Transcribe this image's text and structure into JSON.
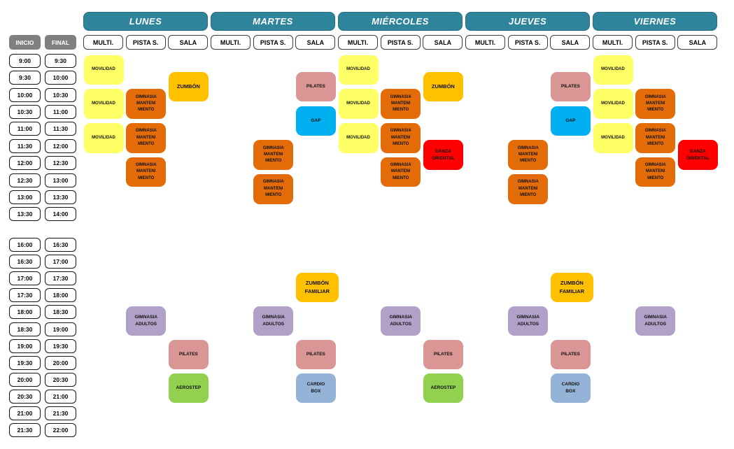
{
  "colors": {
    "day_header": "#2E849B",
    "time_header": "#808080",
    "canvas_background": "#FFFFFF"
  },
  "days": [
    "LUNES",
    "MARTES",
    "MIÉRCOLES",
    "JUEVES",
    "VIERNES"
  ],
  "subcolumns": [
    "MULTI.",
    "PISTA S.",
    "SALA"
  ],
  "time_labels": {
    "inicio": "INICIO",
    "final": "FINAL"
  },
  "morning_rows": [
    {
      "inicio": "9:00",
      "final": "9:30"
    },
    {
      "inicio": "9:30",
      "final": "10:00"
    },
    {
      "inicio": "10:00",
      "final": "10:30"
    },
    {
      "inicio": "10:30",
      "final": "11:00"
    },
    {
      "inicio": "11:00",
      "final": "11:30"
    },
    {
      "inicio": "11:30",
      "final": "12:00"
    },
    {
      "inicio": "12:00",
      "final": "12:30"
    },
    {
      "inicio": "12:30",
      "final": "13:00"
    },
    {
      "inicio": "13:00",
      "final": "13:30"
    },
    {
      "inicio": "13:30",
      "final": "14:00"
    }
  ],
  "afternoon_rows": [
    {
      "inicio": "16:00",
      "final": "16:30"
    },
    {
      "inicio": "16:30",
      "final": "17:00"
    },
    {
      "inicio": "17:00",
      "final": "17:30"
    },
    {
      "inicio": "17:30",
      "final": "18:00"
    },
    {
      "inicio": "18:00",
      "final": "18:30"
    },
    {
      "inicio": "18:30",
      "final": "19:00"
    },
    {
      "inicio": "19:00",
      "final": "19:30"
    },
    {
      "inicio": "19:30",
      "final": "20:00"
    },
    {
      "inicio": "20:00",
      "final": "20:30"
    },
    {
      "inicio": "20:30",
      "final": "21:00"
    },
    {
      "inicio": "21:00",
      "final": "21:30"
    },
    {
      "inicio": "21:30",
      "final": "22:00"
    }
  ],
  "activity_types": {
    "movilidad": {
      "lines": [
        "MOVILIDAD"
      ],
      "color": "#FFFF66"
    },
    "gimnasia_mantenimiento": {
      "lines": [
        "GIMNASIA",
        "MANTENI",
        "MIENTO"
      ],
      "color": "#E36C09"
    },
    "zumbon": {
      "lines": [
        "ZUMBÓN"
      ],
      "color": "#FFC000"
    },
    "pilates": {
      "lines": [
        "PILATES"
      ],
      "color": "#D99694"
    },
    "gap": {
      "lines": [
        "GAP"
      ],
      "color": "#00B0F0"
    },
    "danza_oriental": {
      "lines": [
        "DANZA",
        "ORIENTAL"
      ],
      "color": "#FF0000"
    },
    "zumbon_familiar": {
      "lines": [
        "ZUMBÓN",
        "FAMILIAR"
      ],
      "color": "#FFC000"
    },
    "gimnasia_adultos": {
      "lines": [
        "GIMNASIA",
        "ADULTOS"
      ],
      "color": "#B1A0C7"
    },
    "aerostep": {
      "lines": [
        "AEROSTEP"
      ],
      "color": "#92D050"
    },
    "cardio_box": {
      "lines": [
        "CARDIO",
        "BOX"
      ],
      "color": "#95B3D7"
    }
  },
  "schedule": [
    {
      "type": "movilidad",
      "day": 0,
      "col": 0,
      "section": "morning",
      "row": 0,
      "rows": 2
    },
    {
      "type": "movilidad",
      "day": 0,
      "col": 0,
      "section": "morning",
      "row": 2,
      "rows": 2
    },
    {
      "type": "movilidad",
      "day": 0,
      "col": 0,
      "section": "morning",
      "row": 4,
      "rows": 2
    },
    {
      "type": "gimnasia_mantenimiento",
      "day": 0,
      "col": 1,
      "section": "morning",
      "row": 2,
      "rows": 2
    },
    {
      "type": "gimnasia_mantenimiento",
      "day": 0,
      "col": 1,
      "section": "morning",
      "row": 4,
      "rows": 2
    },
    {
      "type": "gimnasia_mantenimiento",
      "day": 0,
      "col": 1,
      "section": "morning",
      "row": 6,
      "rows": 2
    },
    {
      "type": "zumbon",
      "day": 0,
      "col": 2,
      "section": "morning",
      "row": 1,
      "rows": 2
    },
    {
      "type": "pilates",
      "day": 1,
      "col": 2,
      "section": "morning",
      "row": 1,
      "rows": 2
    },
    {
      "type": "gap",
      "day": 1,
      "col": 2,
      "section": "morning",
      "row": 3,
      "rows": 2
    },
    {
      "type": "gimnasia_mantenimiento",
      "day": 1,
      "col": 1,
      "section": "morning",
      "row": 5,
      "rows": 2
    },
    {
      "type": "gimnasia_mantenimiento",
      "day": 1,
      "col": 1,
      "section": "morning",
      "row": 7,
      "rows": 2
    },
    {
      "type": "movilidad",
      "day": 2,
      "col": 0,
      "section": "morning",
      "row": 0,
      "rows": 2
    },
    {
      "type": "movilidad",
      "day": 2,
      "col": 0,
      "section": "morning",
      "row": 2,
      "rows": 2
    },
    {
      "type": "movilidad",
      "day": 2,
      "col": 0,
      "section": "morning",
      "row": 4,
      "rows": 2
    },
    {
      "type": "gimnasia_mantenimiento",
      "day": 2,
      "col": 1,
      "section": "morning",
      "row": 2,
      "rows": 2
    },
    {
      "type": "gimnasia_mantenimiento",
      "day": 2,
      "col": 1,
      "section": "morning",
      "row": 4,
      "rows": 2
    },
    {
      "type": "gimnasia_mantenimiento",
      "day": 2,
      "col": 1,
      "section": "morning",
      "row": 6,
      "rows": 2
    },
    {
      "type": "zumbon",
      "day": 2,
      "col": 2,
      "section": "morning",
      "row": 1,
      "rows": 2
    },
    {
      "type": "danza_oriental",
      "day": 2,
      "col": 2,
      "section": "morning",
      "row": 5,
      "rows": 2
    },
    {
      "type": "pilates",
      "day": 3,
      "col": 2,
      "section": "morning",
      "row": 1,
      "rows": 2
    },
    {
      "type": "gap",
      "day": 3,
      "col": 2,
      "section": "morning",
      "row": 3,
      "rows": 2
    },
    {
      "type": "gimnasia_mantenimiento",
      "day": 3,
      "col": 1,
      "section": "morning",
      "row": 5,
      "rows": 2
    },
    {
      "type": "gimnasia_mantenimiento",
      "day": 3,
      "col": 1,
      "section": "morning",
      "row": 7,
      "rows": 2
    },
    {
      "type": "movilidad",
      "day": 4,
      "col": 0,
      "section": "morning",
      "row": 0,
      "rows": 2
    },
    {
      "type": "movilidad",
      "day": 4,
      "col": 0,
      "section": "morning",
      "row": 2,
      "rows": 2
    },
    {
      "type": "movilidad",
      "day": 4,
      "col": 0,
      "section": "morning",
      "row": 4,
      "rows": 2
    },
    {
      "type": "gimnasia_mantenimiento",
      "day": 4,
      "col": 1,
      "section": "morning",
      "row": 2,
      "rows": 2
    },
    {
      "type": "gimnasia_mantenimiento",
      "day": 4,
      "col": 1,
      "section": "morning",
      "row": 4,
      "rows": 2
    },
    {
      "type": "gimnasia_mantenimiento",
      "day": 4,
      "col": 1,
      "section": "morning",
      "row": 6,
      "rows": 2
    },
    {
      "type": "danza_oriental",
      "day": 4,
      "col": 2,
      "section": "morning",
      "row": 5,
      "rows": 2
    },
    {
      "type": "gimnasia_adultos",
      "day": 0,
      "col": 1,
      "section": "afternoon",
      "row": 4,
      "rows": 2
    },
    {
      "type": "pilates",
      "day": 0,
      "col": 2,
      "section": "afternoon",
      "row": 6,
      "rows": 2
    },
    {
      "type": "aerostep",
      "day": 0,
      "col": 2,
      "section": "afternoon",
      "row": 8,
      "rows": 2
    },
    {
      "type": "zumbon_familiar",
      "day": 1,
      "col": 2,
      "section": "afternoon",
      "row": 2,
      "rows": 2
    },
    {
      "type": "gimnasia_adultos",
      "day": 1,
      "col": 1,
      "section": "afternoon",
      "row": 4,
      "rows": 2
    },
    {
      "type": "pilates",
      "day": 1,
      "col": 2,
      "section": "afternoon",
      "row": 6,
      "rows": 2
    },
    {
      "type": "cardio_box",
      "day": 1,
      "col": 2,
      "section": "afternoon",
      "row": 8,
      "rows": 2
    },
    {
      "type": "gimnasia_adultos",
      "day": 2,
      "col": 1,
      "section": "afternoon",
      "row": 4,
      "rows": 2
    },
    {
      "type": "pilates",
      "day": 2,
      "col": 2,
      "section": "afternoon",
      "row": 6,
      "rows": 2
    },
    {
      "type": "aerostep",
      "day": 2,
      "col": 2,
      "section": "afternoon",
      "row": 8,
      "rows": 2
    },
    {
      "type": "zumbon_familiar",
      "day": 3,
      "col": 2,
      "section": "afternoon",
      "row": 2,
      "rows": 2
    },
    {
      "type": "gimnasia_adultos",
      "day": 3,
      "col": 1,
      "section": "afternoon",
      "row": 4,
      "rows": 2
    },
    {
      "type": "pilates",
      "day": 3,
      "col": 2,
      "section": "afternoon",
      "row": 6,
      "rows": 2
    },
    {
      "type": "cardio_box",
      "day": 3,
      "col": 2,
      "section": "afternoon",
      "row": 8,
      "rows": 2
    },
    {
      "type": "gimnasia_adultos",
      "day": 4,
      "col": 1,
      "section": "afternoon",
      "row": 4,
      "rows": 2
    }
  ]
}
